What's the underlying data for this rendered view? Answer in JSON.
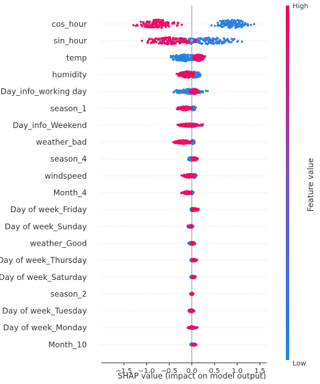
{
  "chart_data": {
    "type": "scatter",
    "subtype": "shap-beeswarm",
    "xlabel": "SHAP value (impact on model output)",
    "x_ticks": [
      -1.5,
      -1.0,
      -0.5,
      0.0,
      0.5,
      1.0,
      1.5
    ],
    "x_tick_labels": [
      "−1.5",
      "−1.0",
      "−0.5",
      "0.0",
      "0.5",
      "1.0",
      "1.5"
    ],
    "xlim": [
      -2.0,
      1.65
    ],
    "colorbar": {
      "title": "Feature value",
      "high_label": "High",
      "low_label": "Low",
      "high_color": "#ff0052",
      "low_color": "#1e88e5"
    },
    "features": [
      {
        "name": "cos_hour",
        "low_range": [
          0.1,
          1.65
        ],
        "high_range": [
          -1.85,
          -0.2
        ],
        "low_center": 0.9,
        "high_center": -0.75,
        "spread": 1.0
      },
      {
        "name": "sin_hour",
        "low_range": [
          -1.0,
          1.55
        ],
        "high_range": [
          -1.75,
          0.3
        ],
        "low_center": 0.3,
        "high_center": -0.5,
        "spread": 0.8
      },
      {
        "name": "temp",
        "low_range": [
          -1.1,
          0.1
        ],
        "high_range": [
          -0.05,
          0.4
        ],
        "low_center": -0.15,
        "high_center": 0.15,
        "spread": 0.8
      },
      {
        "name": "humidity",
        "low_range": [
          -0.1,
          0.45
        ],
        "high_range": [
          -0.65,
          0.05
        ],
        "low_center": 0.05,
        "high_center": -0.1,
        "spread": 0.75
      },
      {
        "name": "Day_info_working day",
        "low_range": [
          -0.75,
          0.5
        ],
        "high_range": [
          -0.1,
          0.2
        ],
        "low_center": -0.05,
        "high_center": 0.05,
        "spread": 0.6
      },
      {
        "name": "season_1",
        "low_range": [
          -0.05,
          0.15
        ],
        "high_range": [
          -0.6,
          0.0
        ],
        "low_center": 0.03,
        "high_center": -0.15,
        "spread": 0.45
      },
      {
        "name": "Day_info_Weekend",
        "low_range": [
          -0.1,
          0.2
        ],
        "high_range": [
          -0.45,
          0.45
        ],
        "low_center": 0.0,
        "high_center": -0.05,
        "spread": 0.4
      },
      {
        "name": "weather_bad",
        "low_range": [
          -0.05,
          0.1
        ],
        "high_range": [
          -0.65,
          0.0
        ],
        "low_center": 0.02,
        "high_center": -0.2,
        "spread": 0.45
      },
      {
        "name": "season_4",
        "low_range": [
          -0.1,
          0.1
        ],
        "high_range": [
          0.0,
          0.25
        ],
        "low_center": -0.02,
        "high_center": 0.05,
        "spread": 0.4
      },
      {
        "name": "windspeed",
        "low_range": [
          -0.05,
          0.15
        ],
        "high_range": [
          -0.45,
          0.1
        ],
        "low_center": 0.05,
        "high_center": -0.05,
        "spread": 0.45
      },
      {
        "name": "Month_4",
        "low_range": [
          -0.05,
          0.05
        ],
        "high_range": [
          -0.4,
          0.0
        ],
        "low_center": 0.0,
        "high_center": -0.1,
        "spread": 0.35
      },
      {
        "name": "Day of week_Friday",
        "low_range": [
          -0.05,
          0.05
        ],
        "high_range": [
          0.0,
          0.35
        ],
        "low_center": 0.0,
        "high_center": 0.05,
        "spread": 0.35
      },
      {
        "name": "Day of week_Sunday",
        "low_range": [
          -0.05,
          0.05
        ],
        "high_range": [
          -0.25,
          0.0
        ],
        "low_center": 0.0,
        "high_center": -0.03,
        "spread": 0.3
      },
      {
        "name": "weather_Good",
        "low_range": [
          -0.1,
          0.05
        ],
        "high_range": [
          -0.05,
          0.1
        ],
        "low_center": -0.02,
        "high_center": 0.02,
        "spread": 0.3
      },
      {
        "name": "Day of week_Thursday",
        "low_range": [
          -0.05,
          0.05
        ],
        "high_range": [
          0.0,
          0.2
        ],
        "low_center": 0.0,
        "high_center": 0.05,
        "spread": 0.3
      },
      {
        "name": "Day of week_Saturday",
        "low_range": [
          -0.05,
          0.05
        ],
        "high_range": [
          0.0,
          0.15
        ],
        "low_center": 0.0,
        "high_center": 0.04,
        "spread": 0.3
      },
      {
        "name": "season_2",
        "low_range": [
          -0.05,
          0.05
        ],
        "high_range": [
          -0.05,
          0.05
        ],
        "low_center": 0.0,
        "high_center": 0.0,
        "spread": 0.25
      },
      {
        "name": "Day of week_Tuesday",
        "low_range": [
          -0.05,
          0.1
        ],
        "high_range": [
          -0.15,
          0.05
        ],
        "low_center": 0.0,
        "high_center": -0.02,
        "spread": 0.3
      },
      {
        "name": "Day of week_Monday",
        "low_range": [
          -0.05,
          0.05
        ],
        "high_range": [
          -0.2,
          0.15
        ],
        "low_center": 0.0,
        "high_center": 0.0,
        "spread": 0.3
      },
      {
        "name": "Month_10",
        "low_range": [
          -0.05,
          0.05
        ],
        "high_range": [
          0.0,
          0.15
        ],
        "low_center": 0.0,
        "high_center": 0.05,
        "spread": 0.25
      }
    ]
  }
}
